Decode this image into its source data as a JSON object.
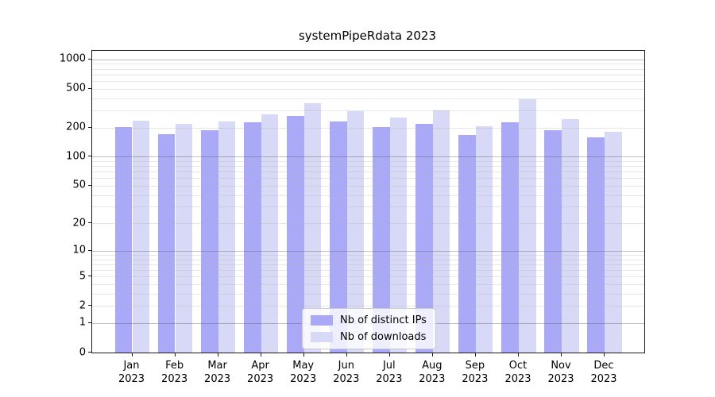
{
  "chart_data": {
    "type": "bar",
    "title": "systemPipeRdata 2023",
    "categories": [
      "Jan",
      "Feb",
      "Mar",
      "Apr",
      "May",
      "Jun",
      "Jul",
      "Aug",
      "Sep",
      "Oct",
      "Nov",
      "Dec"
    ],
    "category_year": "2023",
    "series": [
      {
        "name": "Nb of distinct IPs",
        "color": "#a9a9f7",
        "values": [
          202,
          172,
          186,
          227,
          264,
          229,
          202,
          218,
          167,
          227,
          188,
          157
        ]
      },
      {
        "name": "Nb of downloads",
        "color": "#d8d8f7",
        "values": [
          233,
          219,
          230,
          274,
          355,
          293,
          255,
          297,
          207,
          388,
          242,
          181
        ]
      }
    ],
    "xlabel": "",
    "ylabel": "",
    "yscale": "log10(value+1)",
    "ylim": [
      0,
      1220
    ],
    "yticks_labeled": [
      0,
      1,
      2,
      5,
      10,
      20,
      50,
      100,
      200,
      500,
      1000
    ],
    "gridlines_major": [
      1,
      10,
      100,
      1000
    ],
    "gridlines_minor": [
      2,
      3,
      4,
      5,
      6,
      7,
      8,
      9,
      20,
      30,
      40,
      50,
      60,
      70,
      80,
      90,
      200,
      300,
      400,
      500,
      600,
      700,
      800,
      900
    ],
    "grid": "on, drawn over bars",
    "legend_position": "lower center"
  }
}
